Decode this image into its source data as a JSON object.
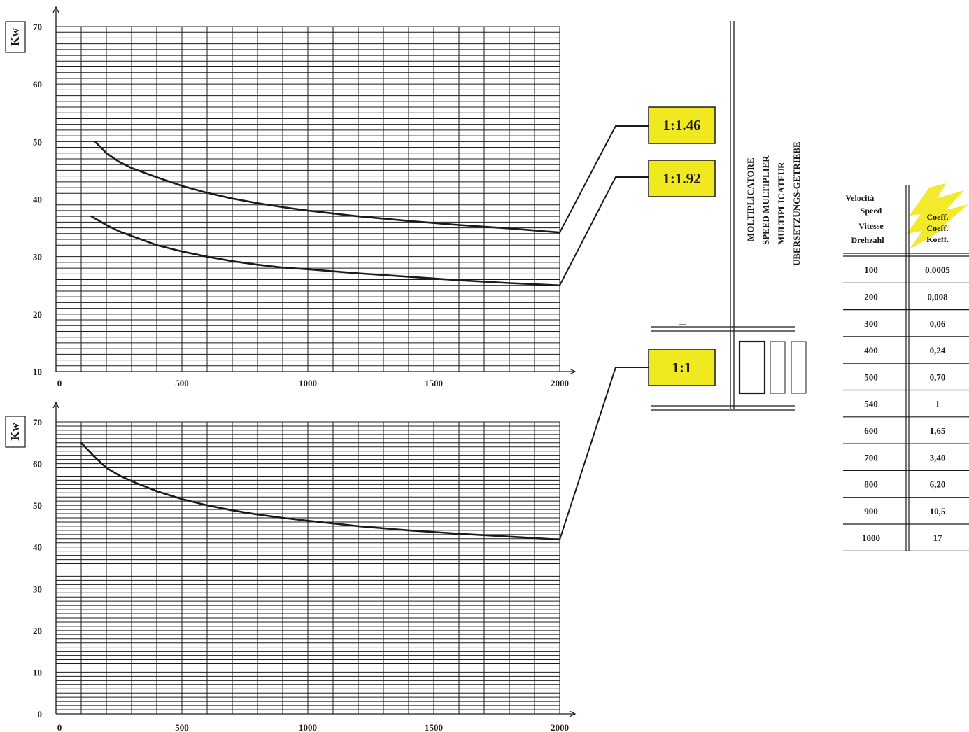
{
  "chart_data": [
    {
      "type": "line",
      "ylabel": "Kw",
      "xlim": [
        0,
        2000
      ],
      "ylim": [
        10,
        70
      ],
      "x_ticks": [
        "0",
        "500",
        "1000",
        "1500",
        "2000"
      ],
      "y_ticks": [
        "10",
        "20",
        "30",
        "40",
        "50",
        "60",
        "70"
      ],
      "grid": true,
      "series": [
        {
          "name": "1:1.46",
          "x": [
            155,
            200,
            250,
            300,
            400,
            500,
            600,
            700,
            800,
            900,
            1000,
            1200,
            1400,
            1600,
            1800,
            2000
          ],
          "y": [
            50.0,
            48.0,
            46.5,
            45.4,
            43.8,
            42.3,
            41.1,
            40.1,
            39.3,
            38.6,
            38.0,
            37.0,
            36.2,
            35.5,
            34.9,
            34.2
          ]
        },
        {
          "name": "1:1.92",
          "x": [
            140,
            200,
            250,
            300,
            400,
            500,
            600,
            700,
            800,
            900,
            1000,
            1200,
            1400,
            1600,
            1800,
            2000
          ],
          "y": [
            37.0,
            35.5,
            34.4,
            33.6,
            32.0,
            30.9,
            30.0,
            29.2,
            28.6,
            28.1,
            27.8,
            27.1,
            26.5,
            25.9,
            25.4,
            25.0
          ]
        }
      ]
    },
    {
      "type": "line",
      "ylabel": "Kw",
      "xlim": [
        0,
        2000
      ],
      "ylim": [
        0,
        70
      ],
      "x_ticks": [
        "0",
        "500",
        "1000",
        "1500",
        "2000"
      ],
      "y_ticks": [
        "0",
        "10",
        "20",
        "30",
        "40",
        "50",
        "60",
        "70"
      ],
      "grid": true,
      "series": [
        {
          "name": "1:1",
          "x": [
            100,
            150,
            200,
            250,
            300,
            400,
            500,
            600,
            700,
            800,
            900,
            1000,
            1200,
            1400,
            1600,
            1800,
            2000
          ],
          "y": [
            65.0,
            61.8,
            59.0,
            57.2,
            55.8,
            53.4,
            51.5,
            50.0,
            48.8,
            47.8,
            47.0,
            46.3,
            45.0,
            44.0,
            43.2,
            42.5,
            41.8
          ]
        }
      ]
    }
  ],
  "ratio_labels": [
    "1:1.46",
    "1:1.92",
    "1:1"
  ],
  "multiplier_label": [
    "MOLTIPLICATORE",
    "SPEED MULTIPLIER",
    "MULTIPLICATEUR",
    "UBERSETZUNGS-GETRIEBE"
  ],
  "table": {
    "header_left": [
      "Velocità",
      "Speed",
      "Vitesse",
      "Drehzahl"
    ],
    "header_right": [
      "Coeff.",
      "Coeff.",
      "Koeff."
    ],
    "rows": [
      [
        "100",
        "0,0005"
      ],
      [
        "200",
        "0,008"
      ],
      [
        "300",
        "0,06"
      ],
      [
        "400",
        "0,24"
      ],
      [
        "500",
        "0,70"
      ],
      [
        "540",
        "1"
      ],
      [
        "600",
        "1,65"
      ],
      [
        "700",
        "3,40"
      ],
      [
        "800",
        "6,20"
      ],
      [
        "900",
        "10,5"
      ],
      [
        "1000",
        "17"
      ]
    ]
  },
  "colors": {
    "label_fill": "#f0e920",
    "label_border": "#1a1a1a",
    "highlight": "#f2ea2a",
    "ink": "#1a1a1a"
  }
}
